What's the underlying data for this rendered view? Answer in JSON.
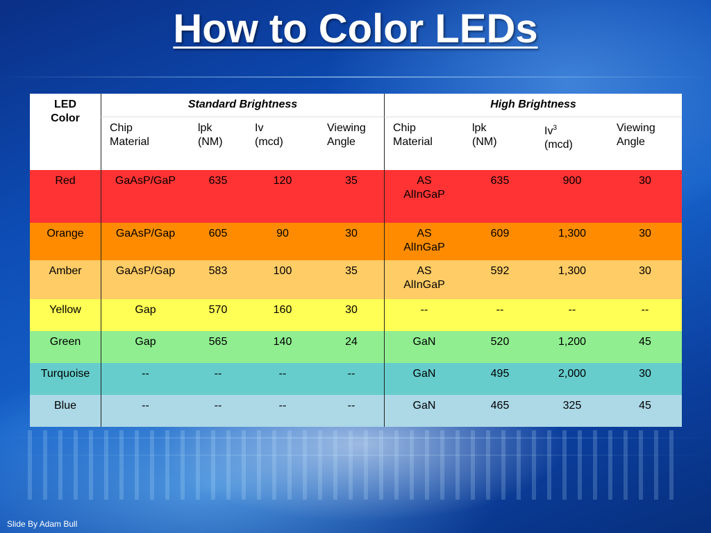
{
  "title": "How to Color LEDs",
  "footer": "Slide By Adam Bull",
  "table": {
    "led_color_header": [
      "LED",
      "Color"
    ],
    "group_standard": "Standard Brightness",
    "group_high": "High Brightness",
    "sub_headers": {
      "chip1": [
        "Chip",
        "Material"
      ],
      "lpk1": [
        "lpk",
        "(NM)"
      ],
      "iv1": [
        "Iv",
        "(mcd)"
      ],
      "va1": [
        "Viewing",
        "Angle"
      ],
      "chip2": [
        "Chip",
        "Material"
      ],
      "lpk2": [
        "lpk",
        "(NM)"
      ],
      "iv2": [
        "Iv",
        "3",
        "(mcd)"
      ],
      "va2": [
        "Viewing",
        "Angle"
      ]
    },
    "rows": [
      {
        "color": "Red",
        "bg": "#ff3333",
        "cells": [
          "GaAsP/GaP",
          "635",
          "120",
          "35",
          "AS",
          "AlInGaP",
          "635",
          "900",
          "30"
        ]
      },
      {
        "color": "Orange",
        "bg": "#ff8c00",
        "cells": [
          "GaAsP/Gap",
          "605",
          "90",
          "30",
          "AS",
          "AlInGaP",
          "609",
          "1,300",
          "30"
        ]
      },
      {
        "color": "Amber",
        "bg": "#ffcc66",
        "cells": [
          "GaAsP/Gap",
          "583",
          "100",
          "35",
          "AS",
          "AlInGaP",
          "592",
          "1,300",
          "30"
        ]
      },
      {
        "color": "Yellow",
        "bg": "#ffff55",
        "cells": [
          "Gap",
          "570",
          "160",
          "30",
          "--",
          "",
          "--",
          "--",
          "--"
        ]
      },
      {
        "color": "Green",
        "bg": "#90ee90",
        "cells": [
          "Gap",
          "565",
          "140",
          "24",
          "GaN",
          "",
          "520",
          "1,200",
          "45"
        ]
      },
      {
        "color": "Turquoise",
        "bg": "#66cdcc",
        "cells": [
          "--",
          "--",
          "--",
          "--",
          "GaN",
          "",
          "495",
          "2,000",
          "30"
        ]
      },
      {
        "color": "Blue",
        "bg": "#add8e6",
        "cells": [
          "--",
          "--",
          "--",
          "--",
          "GaN",
          "",
          "465",
          "325",
          "45"
        ]
      }
    ]
  }
}
